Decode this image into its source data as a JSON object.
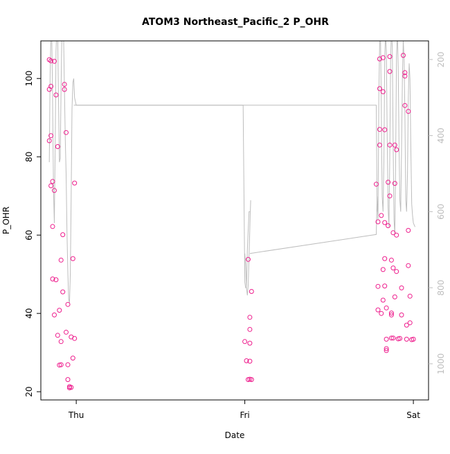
{
  "chart_data": {
    "type": "scatter",
    "title": "ATOM3 Northeast_Pacific_2 P_OHR",
    "xlabel": "Date",
    "ylabel": "P_OHR",
    "x_ticks": [
      "Thu",
      "Fri",
      "Sat"
    ],
    "x_tick_values": [
      1.0,
      2.0,
      3.0
    ],
    "xlim": [
      0.79,
      3.09
    ],
    "ylim": [
      17.9,
      109.6
    ],
    "y_ticks": [
      20,
      40,
      60,
      80,
      100
    ],
    "y2_ticks": [
      200,
      400,
      600,
      800,
      1000
    ],
    "y2lim": [
      1095,
      151
    ],
    "y2_reversed": true,
    "grid": false,
    "point_color": "#ee1c8c",
    "line_color": "#bdbdbd",
    "axis_color": "#000000",
    "y2_axis_color": "#bdbdbd",
    "series": [
      {
        "type": "scatter",
        "axis": "left",
        "x": [
          0.84,
          0.84,
          0.84,
          0.85,
          0.85,
          0.85,
          0.85,
          0.86,
          0.86,
          0.86,
          0.87,
          0.87,
          0.87,
          0.88,
          0.88,
          0.89,
          0.89,
          0.9,
          0.9,
          0.91,
          0.91,
          0.91,
          0.92,
          0.92,
          0.93,
          0.93,
          0.94,
          0.94,
          0.95,
          0.95,
          0.95,
          0.96,
          0.96,
          0.97,
          0.97,
          0.98,
          0.98,
          0.99,
          0.99,
          2.0,
          2.01,
          2.02,
          2.02,
          2.03,
          2.03,
          2.03,
          2.03,
          2.03,
          2.04,
          2.04,
          2.78,
          2.79,
          2.79,
          2.79,
          2.8,
          2.8,
          2.8,
          2.8,
          2.81,
          2.81,
          2.82,
          2.82,
          2.82,
          2.82,
          2.83,
          2.83,
          2.83,
          2.83,
          2.84,
          2.84,
          2.84,
          2.84,
          2.85,
          2.85,
          2.86,
          2.86,
          2.86,
          2.86,
          2.87,
          2.87,
          2.87,
          2.87,
          2.88,
          2.88,
          2.88,
          2.89,
          2.89,
          2.89,
          2.9,
          2.9,
          2.9,
          2.91,
          2.92,
          2.93,
          2.93,
          2.94,
          2.95,
          2.95,
          2.95,
          2.96,
          2.96,
          2.97,
          2.97,
          2.97,
          2.98,
          2.98,
          2.99,
          3.0
        ],
        "y": [
          104.8,
          97.2,
          84.1,
          104.5,
          98.0,
          85.4,
          72.6,
          73.7,
          62.2,
          48.8,
          104.4,
          71.4,
          39.6,
          95.8,
          48.6,
          82.6,
          34.4,
          40.8,
          26.8,
          32.8,
          53.6,
          26.9,
          60.1,
          45.5,
          98.5,
          97.2,
          86.2,
          35.2,
          42.3,
          26.9,
          23.1,
          21.3,
          21.0,
          34.0,
          21.1,
          28.6,
          54.0,
          73.3,
          33.6,
          32.8,
          27.9,
          23.1,
          53.8,
          23.2,
          27.8,
          32.4,
          39.0,
          35.9,
          45.6,
          23.1,
          73.0,
          63.4,
          46.9,
          40.9,
          105.0,
          97.4,
          87.0,
          83.0,
          65.0,
          40.0,
          105.3,
          96.6,
          51.2,
          43.4,
          86.9,
          63.2,
          54.0,
          47.0,
          41.4,
          30.5,
          31.0,
          33.4,
          73.5,
          62.4,
          105.6,
          101.8,
          83.0,
          70.0,
          53.6,
          40.1,
          39.6,
          33.7,
          60.6,
          51.6,
          33.7,
          83.0,
          73.2,
          44.2,
          81.8,
          60.0,
          50.7,
          33.5,
          33.6,
          46.5,
          39.6,
          105.9,
          101.5,
          100.6,
          93.1,
          37.0,
          33.4,
          91.6,
          61.2,
          52.2,
          44.4,
          37.6,
          33.3,
          33.4
        ]
      },
      {
        "type": "line",
        "axis": "right",
        "segments": [
          {
            "x": [
              0.84,
              0.845,
              0.85,
              0.855,
              0.86,
              0.865,
              0.87,
              0.875,
              0.88,
              0.885,
              0.89,
              0.895,
              0.9,
              0.905,
              0.91,
              0.915,
              0.92,
              0.925,
              0.93,
              0.935,
              0.94,
              0.945,
              0.95,
              0.955,
              0.96,
              0.965,
              0.97,
              0.975,
              0.98,
              0.985,
              0.99,
              1.0,
              1.99,
              2.0,
              2.005,
              2.01,
              2.015,
              2.02,
              2.025,
              2.03
            ],
            "y": [
              470,
              240,
              130,
              140,
              310,
              545,
              630,
              430,
              180,
              120,
              130,
              320,
              470,
              460,
              280,
              120,
              110,
              145,
              280,
              410,
              500,
              650,
              760,
              830,
              840,
              760,
              560,
              330,
              260,
              250,
              300,
              320,
              320,
              785,
              800,
              800,
              700,
              650,
              600,
              600
            ]
          },
          {
            "x": [
              2.0,
              2.005,
              2.01,
              2.015,
              2.02,
              2.025,
              2.03,
              2.035
            ],
            "y": [
              710,
              740,
              800,
              820,
              795,
              720,
              640,
              570
            ]
          },
          {
            "x": [
              2.03,
              2.78,
              2.785,
              2.79,
              2.795,
              2.8,
              2.805,
              2.81,
              2.815,
              2.82,
              2.825,
              2.83,
              2.835,
              2.84,
              2.845,
              2.85,
              2.855,
              2.86,
              2.865,
              2.87,
              2.875,
              2.88,
              2.885,
              2.89,
              2.895,
              2.9,
              2.905,
              2.91,
              2.915,
              2.92,
              2.925,
              2.93,
              2.935,
              2.94,
              2.945,
              2.95,
              2.955,
              2.96,
              2.965,
              2.97,
              2.975,
              2.98,
              2.985,
              2.99,
              2.995,
              3.0,
              3.01
            ],
            "y": [
              710,
              660,
              560,
              620,
              300,
              150,
              130,
              330,
              560,
              600,
              470,
              200,
              130,
              180,
              410,
              590,
              640,
              460,
              200,
              120,
              170,
              430,
              620,
              660,
              470,
              190,
              130,
              220,
              430,
              570,
              600,
              440,
              240,
              150,
              200,
              350,
              570,
              600,
              500,
              300,
              210,
              250,
              430,
              580,
              610,
              630,
              640
            ]
          },
          {
            "x": [
              0.985,
              1.0,
              2.78,
              2.785
            ],
            "y": [
              320,
              320,
              320,
              600
            ]
          }
        ]
      }
    ]
  }
}
